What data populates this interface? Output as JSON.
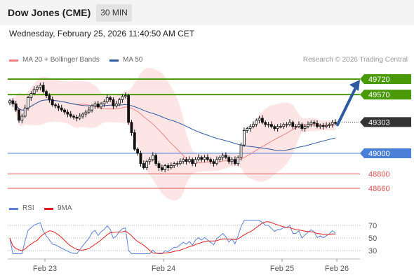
{
  "header": {
    "instrument": "Dow Jones (CME)",
    "timeframe": "30 MIN",
    "datetime": "Wednesday, February 25, 2026 11:40:50 AM CET",
    "credit": "Research © 2026 Trading Central"
  },
  "legend": {
    "ma20_label": "MA 20 + Bollinger Bands",
    "ma50_label": "MA 50",
    "rsi_label": "RSI",
    "rsi_ma_label": "9MA"
  },
  "colors": {
    "ma20": "#f08080",
    "ma50": "#2e5aa0",
    "bollinger_fill": "#fde0e0",
    "resistance": "#4a9a08",
    "pivot": "#4a7fd8",
    "support": "#e05050",
    "current": "#333333",
    "arrow": "#2e5aa0",
    "rsi": "#5b82d6",
    "rsi_ma": "#e02020"
  },
  "chart_data": [
    {
      "type": "candlestick",
      "y_range": [
        48530,
        49880
      ],
      "x_labels": [
        "Feb 23",
        "Feb 24",
        "Feb 25",
        "Feb 26"
      ],
      "current_price": 49303,
      "levels": [
        {
          "value": 49720,
          "label": "49720",
          "kind": "resistance"
        },
        {
          "value": 49570,
          "label": "49570",
          "kind": "resistance"
        },
        {
          "value": 49303,
          "label": "49303",
          "kind": "current"
        },
        {
          "value": 49000,
          "label": "49000",
          "kind": "pivot"
        },
        {
          "value": 48800,
          "label": "48800",
          "kind": "support"
        },
        {
          "value": 48660,
          "label": "48660",
          "kind": "support"
        }
      ],
      "forecast_arrow": {
        "from": 49290,
        "to": 49720,
        "direction": "up"
      },
      "closes": [
        49510,
        49480,
        49420,
        49320,
        49360,
        49440,
        49540,
        49580,
        49620,
        49640,
        49660,
        49600,
        49560,
        49520,
        49470,
        49460,
        49440,
        49420,
        49400,
        49380,
        49360,
        49350,
        49340,
        49360,
        49380,
        49400,
        49420,
        49460,
        49480,
        49450,
        49480,
        49500,
        49540,
        49520,
        49460,
        49480,
        49520,
        49550,
        49560,
        49300,
        49200,
        49040,
        49000,
        48900,
        48860,
        48920,
        48940,
        48980,
        48900,
        48860,
        48840,
        48880,
        48860,
        48880,
        48900,
        48900,
        48920,
        48940,
        48920,
        48940,
        48900,
        48940,
        48960,
        48940,
        48960,
        48940,
        48920,
        48900,
        48940,
        48960,
        48980,
        48960,
        48920,
        48940,
        48900,
        48960,
        49080,
        49220,
        49240,
        49260,
        49280,
        49320,
        49340,
        49300,
        49280,
        49280,
        49260,
        49240,
        49260,
        49260,
        49280,
        49280,
        49300,
        49260,
        49260,
        49280,
        49240,
        49260,
        49280,
        49300,
        49290,
        49260,
        49270,
        49260,
        49270,
        49280,
        49300,
        49290
      ],
      "rsi": {
        "levels": [
          70,
          50,
          30
        ],
        "y_range": [
          25,
          78
        ]
      }
    }
  ]
}
